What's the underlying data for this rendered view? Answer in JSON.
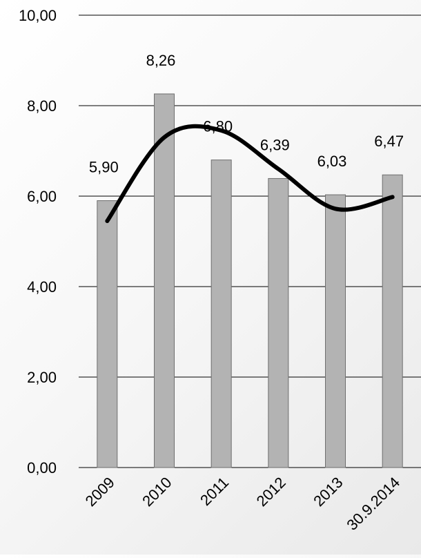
{
  "chart_data": {
    "type": "bar",
    "categories": [
      "2009",
      "2010",
      "2011",
      "2012",
      "2013",
      "30.9.2014"
    ],
    "values": [
      5.9,
      8.26,
      6.8,
      6.39,
      6.03,
      6.47
    ],
    "value_labels": [
      "5,90",
      "8,26",
      "6,80",
      "6,39",
      "6,03",
      "6,47"
    ],
    "trend_line": {
      "style": "smooth",
      "color": "#000000",
      "values": [
        5.45,
        7.3,
        7.45,
        6.6,
        5.72,
        5.98
      ]
    },
    "ylim": [
      0,
      10
    ],
    "yticks": [
      0,
      2,
      4,
      6,
      8,
      10
    ],
    "ytick_labels": [
      "0,00",
      "2,00",
      "4,00",
      "6,00",
      "8,00",
      "10,00"
    ],
    "grid": true,
    "legend": "none",
    "title": "",
    "xlabel": "",
    "ylabel": "",
    "colors": {
      "bar_fill": "#b3b3b3",
      "bar_stroke": "#6e6e6e",
      "gridline": "#000000"
    }
  }
}
